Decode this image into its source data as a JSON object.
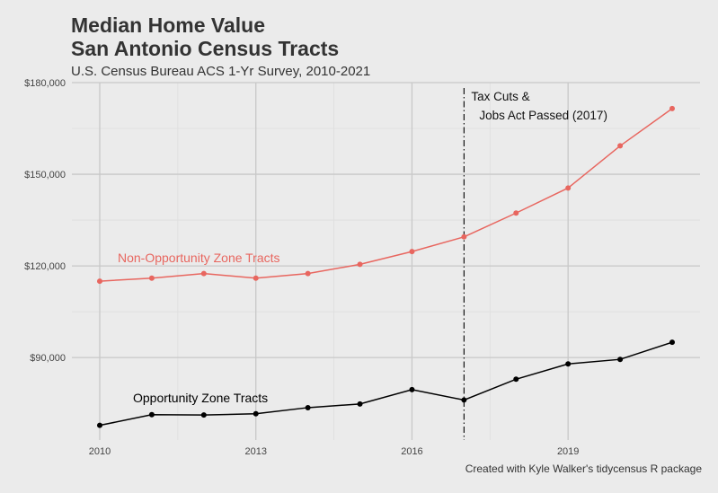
{
  "chart_data": {
    "type": "line",
    "title_line1": "Median Home Value",
    "title_line2": "San Antonio Census Tracts",
    "subtitle": "U.S. Census Bureau ACS 1-Yr Survey, 2010-2021",
    "caption": "Created with Kyle Walker's tidycensus R package",
    "x": [
      2010,
      2011,
      2012,
      2013,
      2014,
      2015,
      2016,
      2017,
      2018,
      2019,
      2020,
      2021
    ],
    "xlim": [
      2010,
      2021
    ],
    "x_ticks": [
      2010,
      2013,
      2016,
      2019
    ],
    "x_tick_labels": [
      "2010",
      "2013",
      "2016",
      "2019"
    ],
    "ylim": [
      63000,
      180000
    ],
    "y_ticks": [
      90000,
      120000,
      150000,
      180000
    ],
    "y_tick_labels": [
      "$90,000",
      "$120,000",
      "$150,000",
      "$180,000"
    ],
    "grid": true,
    "series": [
      {
        "name": "Non-Opportunity Zone Tracts",
        "color": "#e8665f",
        "values": [
          115000,
          116000,
          117500,
          116000,
          117500,
          120500,
          124700,
          129500,
          137300,
          145500,
          159300,
          171500
        ]
      },
      {
        "name": "Opportunity Zone Tracts",
        "color": "#000000",
        "values": [
          67800,
          71300,
          71200,
          71600,
          73600,
          74800,
          79500,
          76100,
          82900,
          87900,
          89400,
          95000
        ]
      }
    ],
    "vline": {
      "x": 2017,
      "label_line1": "Tax Cuts &",
      "label_line2": "Jobs Act Passed (2017)"
    }
  }
}
